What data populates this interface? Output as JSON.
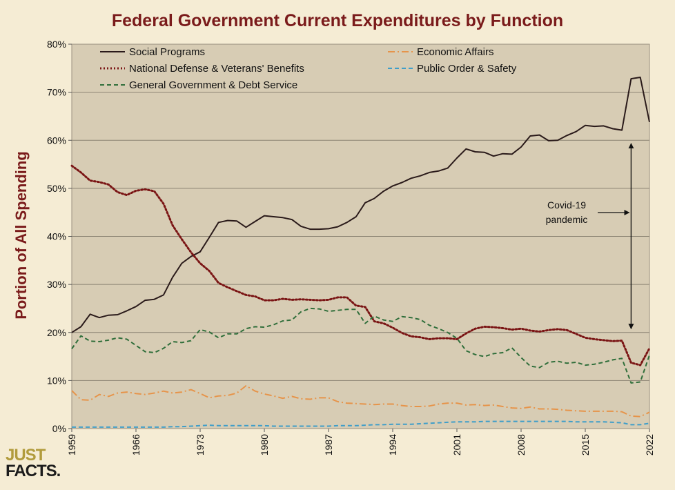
{
  "logo": {
    "line1": "JUST",
    "line2": "FACTS."
  },
  "chart_data": {
    "type": "line",
    "title": "Federal Government Current Expenditures by Function",
    "ylabel": "Portion of All Spending",
    "xlabel": "",
    "ylim": [
      0,
      80
    ],
    "xlim": [
      1959,
      2022
    ],
    "y_ticks": [
      "0%",
      "10%",
      "20%",
      "30%",
      "40%",
      "50%",
      "60%",
      "70%",
      "80%"
    ],
    "x_ticks": [
      "1959",
      "1966",
      "1973",
      "1980",
      "1987",
      "1994",
      "2001",
      "2008",
      "2015",
      "2022"
    ],
    "grid": "horizontal",
    "legend_position": "top",
    "x": [
      1959,
      1960,
      1961,
      1962,
      1963,
      1964,
      1965,
      1966,
      1967,
      1968,
      1969,
      1970,
      1971,
      1972,
      1973,
      1974,
      1975,
      1976,
      1977,
      1978,
      1979,
      1980,
      1981,
      1982,
      1983,
      1984,
      1985,
      1986,
      1987,
      1988,
      1989,
      1990,
      1991,
      1992,
      1993,
      1994,
      1995,
      1996,
      1997,
      1998,
      1999,
      2000,
      2001,
      2002,
      2003,
      2004,
      2005,
      2006,
      2007,
      2008,
      2009,
      2010,
      2011,
      2012,
      2013,
      2014,
      2015,
      2016,
      2017,
      2018,
      2019,
      2020,
      2021,
      2022
    ],
    "series": [
      {
        "name": "Social Programs",
        "color": "#2a1a1a",
        "dash": "solid",
        "values": [
          20.0,
          21.2,
          23.8,
          23.1,
          23.6,
          23.7,
          24.5,
          25.4,
          26.7,
          26.9,
          27.8,
          31.5,
          34.4,
          35.8,
          36.8,
          39.8,
          42.9,
          43.3,
          43.2,
          41.9,
          43.1,
          44.3,
          44.1,
          43.9,
          43.5,
          42.1,
          41.5,
          41.5,
          41.6,
          42.0,
          42.9,
          44.1,
          47.0,
          47.9,
          49.4,
          50.5,
          51.2,
          52.1,
          52.6,
          53.3,
          53.6,
          54.2,
          56.3,
          58.2,
          57.6,
          57.5,
          56.7,
          57.2,
          57.1,
          58.6,
          60.9,
          61.1,
          59.9,
          60.0,
          61.0,
          61.8,
          63.1,
          62.9,
          63.0,
          62.4,
          62.1,
          72.8,
          73.1,
          63.8
        ]
      },
      {
        "name": "Economic Affairs",
        "color": "#e6944a",
        "dash": "dashdot",
        "values": [
          7.9,
          6.0,
          5.9,
          7.1,
          6.7,
          7.4,
          7.6,
          7.3,
          7.1,
          7.4,
          7.8,
          7.4,
          7.6,
          8.1,
          7.3,
          6.4,
          6.8,
          6.9,
          7.4,
          8.9,
          7.8,
          7.2,
          6.8,
          6.3,
          6.7,
          6.2,
          6.1,
          6.4,
          6.4,
          5.6,
          5.3,
          5.2,
          5.1,
          5.0,
          5.1,
          5.1,
          4.8,
          4.6,
          4.6,
          4.7,
          5.1,
          5.3,
          5.3,
          4.9,
          5.0,
          4.8,
          4.9,
          4.6,
          4.3,
          4.2,
          4.5,
          4.1,
          4.1,
          4.0,
          3.8,
          3.7,
          3.6,
          3.6,
          3.6,
          3.6,
          3.5,
          2.6,
          2.5,
          3.4
        ]
      },
      {
        "name": "National Defense & Veterans' Benefits",
        "color": "#7a1414",
        "dash": "dotted",
        "values": [
          54.7,
          53.3,
          51.6,
          51.3,
          50.8,
          49.2,
          48.6,
          49.5,
          49.8,
          49.4,
          46.8,
          42.3,
          39.4,
          36.7,
          34.4,
          32.8,
          30.3,
          29.4,
          28.6,
          27.8,
          27.5,
          26.7,
          26.7,
          27.0,
          26.8,
          26.9,
          26.8,
          26.7,
          26.8,
          27.3,
          27.3,
          25.6,
          25.3,
          22.3,
          21.9,
          21.0,
          19.9,
          19.2,
          19.0,
          18.6,
          18.8,
          18.8,
          18.6,
          19.8,
          20.8,
          21.2,
          21.1,
          20.9,
          20.6,
          20.8,
          20.4,
          20.2,
          20.5,
          20.7,
          20.5,
          19.7,
          18.9,
          18.6,
          18.4,
          18.2,
          18.3,
          13.7,
          13.2,
          16.7
        ]
      },
      {
        "name": "Public Order & Safety",
        "color": "#3f9ec9",
        "dash": "dashed",
        "values": [
          0.3,
          0.3,
          0.3,
          0.3,
          0.3,
          0.3,
          0.3,
          0.3,
          0.3,
          0.3,
          0.3,
          0.4,
          0.4,
          0.5,
          0.6,
          0.7,
          0.6,
          0.6,
          0.6,
          0.6,
          0.6,
          0.6,
          0.5,
          0.5,
          0.5,
          0.5,
          0.5,
          0.5,
          0.5,
          0.6,
          0.6,
          0.6,
          0.7,
          0.8,
          0.8,
          0.9,
          0.9,
          0.9,
          1.0,
          1.1,
          1.2,
          1.3,
          1.4,
          1.4,
          1.4,
          1.5,
          1.5,
          1.5,
          1.5,
          1.5,
          1.5,
          1.5,
          1.5,
          1.5,
          1.5,
          1.4,
          1.4,
          1.4,
          1.4,
          1.3,
          1.2,
          0.8,
          0.8,
          1.1
        ]
      },
      {
        "name": "General Government & Debt Service",
        "color": "#2f6e3a",
        "dash": "dashed",
        "values": [
          16.6,
          19.3,
          18.2,
          18.1,
          18.4,
          18.9,
          18.6,
          17.3,
          16.0,
          15.8,
          16.7,
          18.1,
          17.9,
          18.3,
          20.6,
          20.1,
          18.9,
          19.7,
          19.7,
          20.8,
          21.2,
          21.1,
          21.6,
          22.4,
          22.6,
          24.3,
          25.0,
          24.9,
          24.4,
          24.6,
          24.8,
          24.8,
          21.9,
          23.4,
          22.6,
          22.3,
          23.3,
          23.1,
          22.7,
          21.5,
          20.8,
          20.0,
          18.8,
          16.2,
          15.4,
          15.0,
          15.6,
          15.8,
          16.8,
          14.8,
          13.0,
          12.7,
          13.8,
          14.0,
          13.6,
          13.8,
          13.2,
          13.4,
          13.8,
          14.3,
          14.6,
          9.5,
          9.7,
          15.3
        ]
      }
    ],
    "annotation": {
      "lines": [
        "Covid-19",
        "pandemic"
      ],
      "arrow_year": 2020
    }
  }
}
